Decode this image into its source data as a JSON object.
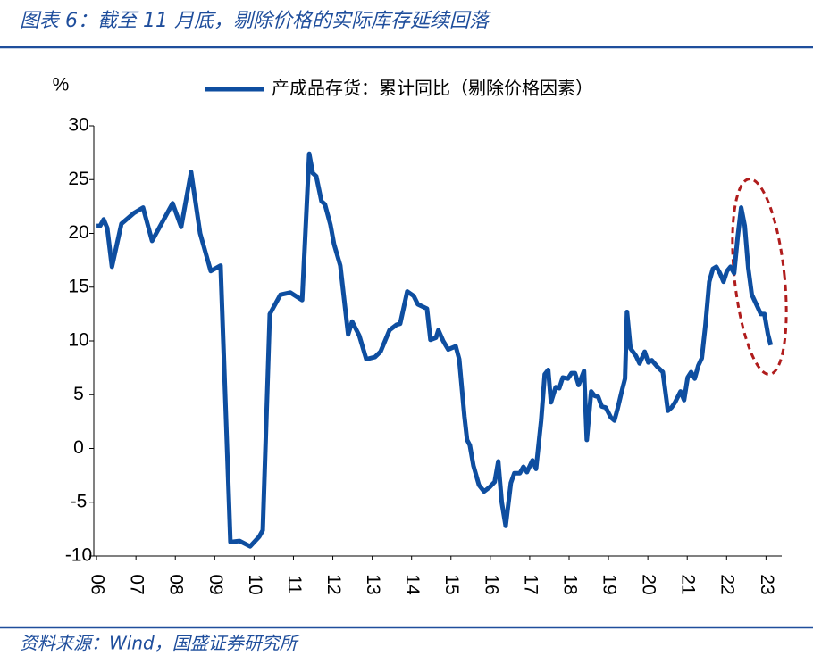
{
  "title": "图表 6：截至 11 月底，剔除价格的实际库存延续回落",
  "source": "资料来源：Wind，国盛证券研究所",
  "chart_data": {
    "type": "line",
    "y_unit": "%",
    "x": [
      2006.0,
      2006.09,
      2006.18,
      2006.27,
      2006.39,
      2006.63,
      2006.95,
      2007.18,
      2007.41,
      2007.93,
      2008.15,
      2008.4,
      2008.63,
      2008.9,
      2009.15,
      2009.4,
      2009.63,
      2009.9,
      2010.13,
      2010.22,
      2010.4,
      2010.67,
      2010.92,
      2011.22,
      2011.4,
      2011.49,
      2011.58,
      2011.71,
      2011.8,
      2011.94,
      2012.03,
      2012.19,
      2012.39,
      2012.49,
      2012.67,
      2012.85,
      2013.07,
      2013.21,
      2013.44,
      2013.62,
      2013.71,
      2013.89,
      2014.05,
      2014.16,
      2014.39,
      2014.48,
      2014.62,
      2014.68,
      2014.8,
      2014.93,
      2015.12,
      2015.21,
      2015.34,
      2015.41,
      2015.48,
      2015.57,
      2015.71,
      2015.84,
      2015.98,
      2016.11,
      2016.2,
      2016.29,
      2016.39,
      2016.52,
      2016.61,
      2016.75,
      2016.84,
      2016.93,
      2017.07,
      2017.16,
      2017.29,
      2017.38,
      2017.47,
      2017.54,
      2017.66,
      2017.75,
      2017.84,
      2017.97,
      2018.06,
      2018.15,
      2018.24,
      2018.38,
      2018.45,
      2018.56,
      2018.65,
      2018.74,
      2018.83,
      2018.93,
      2019.06,
      2019.15,
      2019.24,
      2019.33,
      2019.42,
      2019.47,
      2019.56,
      2019.7,
      2019.79,
      2019.92,
      2020.01,
      2020.1,
      2020.24,
      2020.38,
      2020.51,
      2020.6,
      2020.69,
      2020.83,
      2020.92,
      2021.01,
      2021.1,
      2021.19,
      2021.28,
      2021.37,
      2021.46,
      2021.56,
      2021.65,
      2021.74,
      2021.83,
      2021.92,
      2022.01,
      2022.1,
      2022.19,
      2022.28,
      2022.37,
      2022.46,
      2022.55,
      2022.64,
      2022.78,
      2022.87,
      2022.96,
      2023.05,
      2023.12
    ],
    "series": [
      {
        "name": "产成品存货：累计同比（剔除价格因素）",
        "color": "#0e4ea0",
        "values": [
          20.7,
          20.7,
          21.3,
          20.5,
          16.9,
          20.9,
          21.9,
          22.4,
          19.3,
          22.8,
          20.6,
          25.7,
          20.0,
          16.5,
          17.0,
          -8.7,
          -8.6,
          -9.1,
          -8.2,
          -7.6,
          12.5,
          14.3,
          14.5,
          13.8,
          27.4,
          25.6,
          25.3,
          23.0,
          22.7,
          20.8,
          19.0,
          17.0,
          10.6,
          11.8,
          10.5,
          8.3,
          8.5,
          9.0,
          11.0,
          11.5,
          11.6,
          14.6,
          14.2,
          13.4,
          13.0,
          10.1,
          10.3,
          11.0,
          10.0,
          9.2,
          9.5,
          8.3,
          3.0,
          0.8,
          0.3,
          -1.6,
          -3.4,
          -4.0,
          -3.6,
          -3.1,
          -1.2,
          -5.0,
          -7.2,
          -3.2,
          -2.3,
          -2.3,
          -1.7,
          -2.2,
          -1.1,
          -1.9,
          2.6,
          6.9,
          7.3,
          4.3,
          5.7,
          5.6,
          6.6,
          6.5,
          7.0,
          7.0,
          5.9,
          7.2,
          0.8,
          5.3,
          4.9,
          4.8,
          3.9,
          3.8,
          2.9,
          2.6,
          3.8,
          5.2,
          6.5,
          12.7,
          9.3,
          8.6,
          7.9,
          9.0,
          8.0,
          8.2,
          7.6,
          7.1,
          3.5,
          3.8,
          4.3,
          5.3,
          4.5,
          6.6,
          7.1,
          6.5,
          7.7,
          8.4,
          11.4,
          15.5,
          16.7,
          16.9,
          16.3,
          15.5,
          16.5,
          16.9,
          16.3,
          19.6,
          22.4,
          20.7,
          16.8,
          14.3,
          13.2,
          12.5,
          12.5,
          10.6,
          9.6
        ]
      }
    ],
    "xlim": [
      2005.93,
      2023.4
    ],
    "xticks": [
      {
        "value": 2006,
        "label": "06"
      },
      {
        "value": 2007,
        "label": "07"
      },
      {
        "value": 2008,
        "label": "08"
      },
      {
        "value": 2009,
        "label": "09"
      },
      {
        "value": 2010,
        "label": "10"
      },
      {
        "value": 2011,
        "label": "11"
      },
      {
        "value": 2012,
        "label": "12"
      },
      {
        "value": 2013,
        "label": "13"
      },
      {
        "value": 2014,
        "label": "14"
      },
      {
        "value": 2015,
        "label": "15"
      },
      {
        "value": 2016,
        "label": "16"
      },
      {
        "value": 2017,
        "label": "17"
      },
      {
        "value": 2018,
        "label": "18"
      },
      {
        "value": 2019,
        "label": "19"
      },
      {
        "value": 2020,
        "label": "20"
      },
      {
        "value": 2021,
        "label": "21"
      },
      {
        "value": 2022,
        "label": "22"
      },
      {
        "value": 2023,
        "label": "23"
      }
    ],
    "ylim": [
      -10,
      30
    ],
    "yticks": [
      -10,
      -5,
      0,
      5,
      10,
      15,
      20,
      25,
      30
    ],
    "grid": false,
    "legend": "top"
  }
}
